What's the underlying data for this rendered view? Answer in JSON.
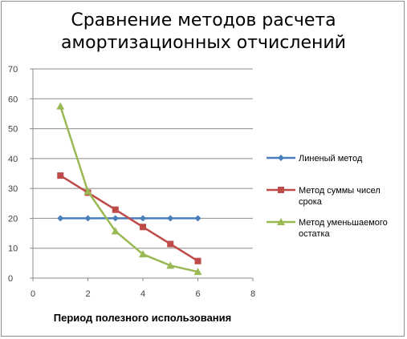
{
  "chart_data": {
    "type": "line",
    "title": "Сравнение методов расчета амортизационных отчислений",
    "title_lines": [
      "Сравнение методов расчета",
      "амортизационных отчислений"
    ],
    "xlabel": "Период полезного использования",
    "ylabel": "",
    "xlim": [
      0,
      8
    ],
    "ylim": [
      0,
      70
    ],
    "x_ticks": [
      0,
      2,
      4,
      6,
      8
    ],
    "y_ticks": [
      0,
      10,
      20,
      30,
      40,
      50,
      60,
      70
    ],
    "grid": true,
    "legend_position": "right",
    "x": [
      1,
      2,
      3,
      4,
      5,
      6
    ],
    "series": [
      {
        "name": "Линеный метод",
        "values": [
          20,
          20,
          20,
          20,
          20,
          20
        ],
        "color": "#4a7ebb",
        "marker": "diamond"
      },
      {
        "name": "Метод суммы чисел срока",
        "values": [
          34.3,
          28.6,
          22.9,
          17.1,
          11.4,
          5.7
        ],
        "color": "#be4b48",
        "marker": "square"
      },
      {
        "name": "Метод уменьшаемого остатка",
        "values": [
          57.5,
          29,
          15.7,
          8,
          4.2,
          2.1
        ],
        "color": "#98b954",
        "marker": "triangle"
      }
    ]
  }
}
